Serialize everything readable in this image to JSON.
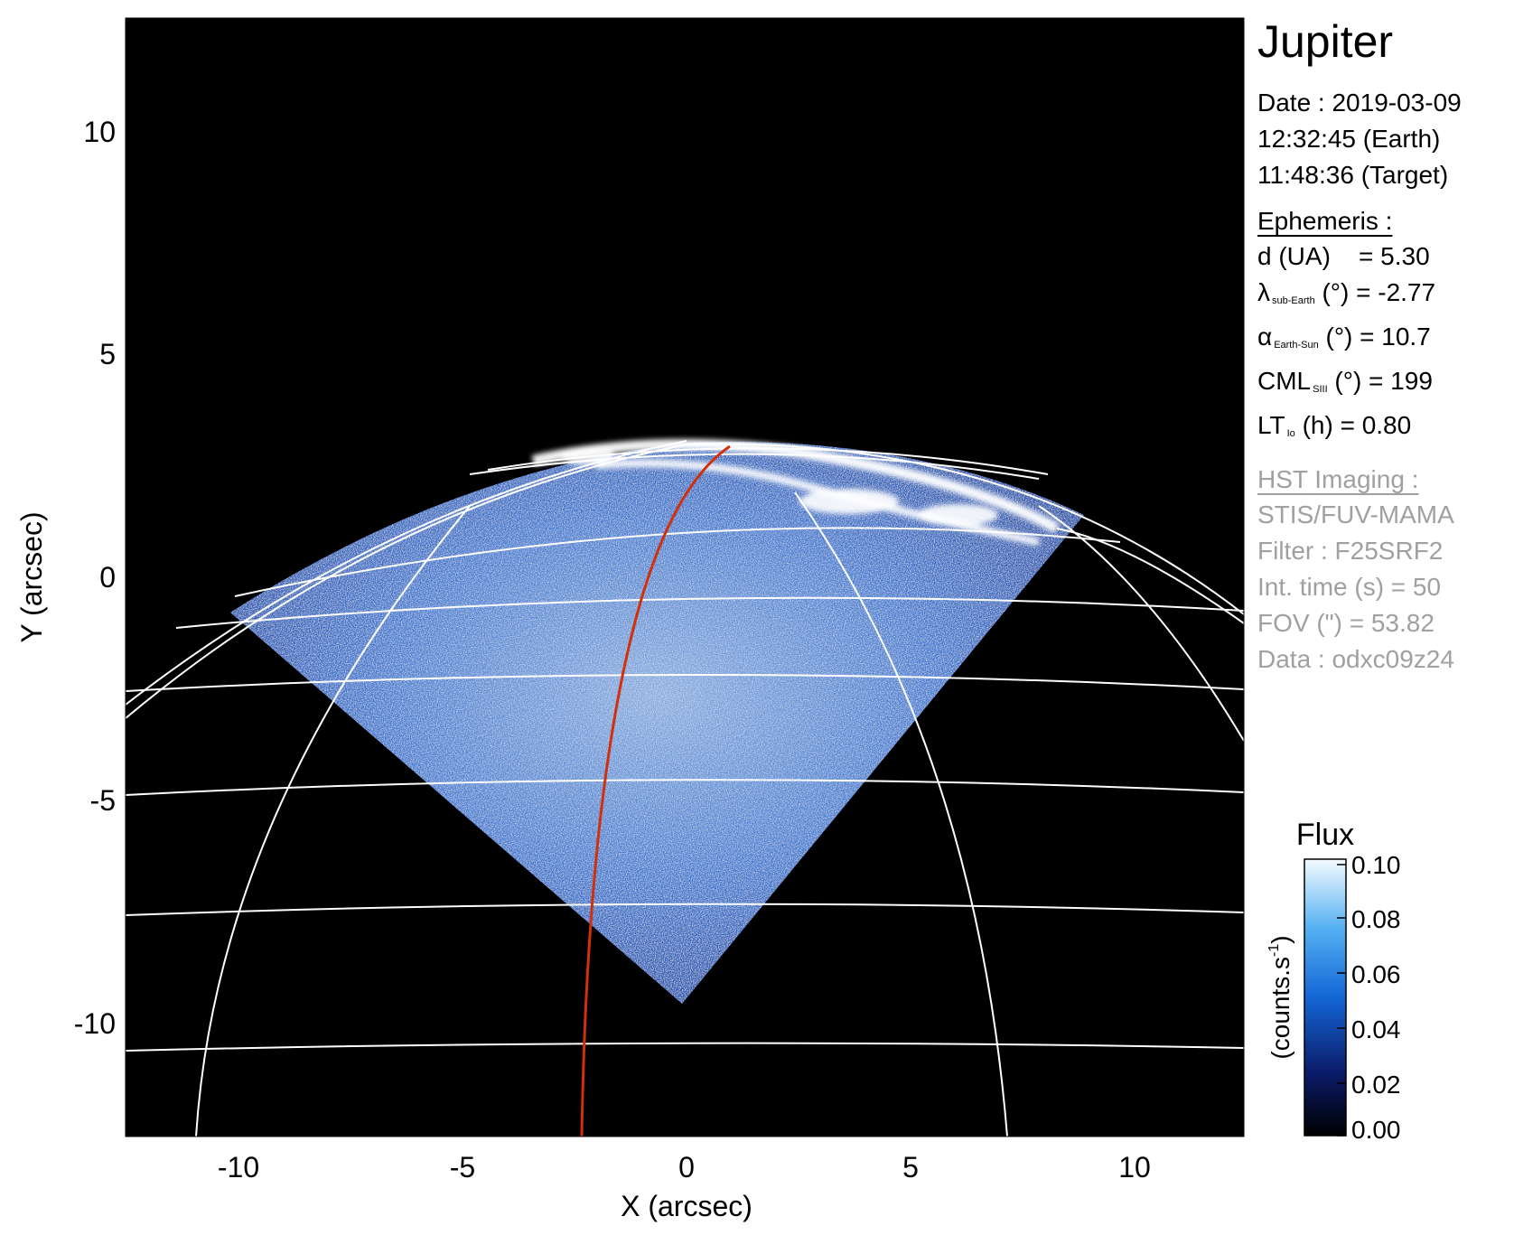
{
  "title": "Jupiter",
  "info": {
    "date": "Date : 2019-03-09",
    "time_earth": "12:32:45 (Earth)",
    "time_target": "11:48:36 (Target)"
  },
  "ephemeris": {
    "heading": "Ephemeris :",
    "d": "d (UA)    = 5.30",
    "lambda_sym": "λ",
    "lambda_sub": "sub-Earth",
    "lambda_rest": "(°) = -2.77",
    "alpha_sym": "α",
    "alpha_sub": "Earth-Sun",
    "alpha_rest": "(°) = 10.7",
    "cml_sym": "CML",
    "cml_sub": "SIII",
    "cml_rest": "(°) = 199",
    "lt_sym": "LT",
    "lt_sub": "Io",
    "lt_rest": "(h) = 0.80"
  },
  "imaging": {
    "heading": "HST Imaging :",
    "instrument": "STIS/FUV-MAMA",
    "filter": "Filter : F25SRF2",
    "int_time": "Int. time (s) = 50",
    "fov": "FOV (\") = 53.82",
    "data_id": "Data : odxc09z24"
  },
  "colorbar": {
    "title": "Flux",
    "unit_label": "(counts.s",
    "unit_sup": "-1",
    "unit_close": ")",
    "ticks": [
      "0.10",
      "0.08",
      "0.06",
      "0.04",
      "0.02",
      "0.00"
    ]
  },
  "chart_data": {
    "type": "heatmap",
    "xlabel": "X (arcsec)",
    "ylabel": "Y (arcsec)",
    "xlim": [
      -12.5,
      12.5
    ],
    "ylim": [
      -12.5,
      12.5
    ],
    "x_ticks": [
      "-10",
      "-5",
      "0",
      "5",
      "10"
    ],
    "y_ticks": [
      "10",
      "5",
      "0",
      "-5",
      "-10"
    ],
    "colorbar_range": [
      0.0,
      0.1
    ]
  },
  "colors": {
    "background": "#000000",
    "grid": "#ffffff",
    "meridian": "#d2300c",
    "emission": "#2a6fd6",
    "aurora": "#ffffff",
    "muted_text": "#a0a0a0"
  }
}
